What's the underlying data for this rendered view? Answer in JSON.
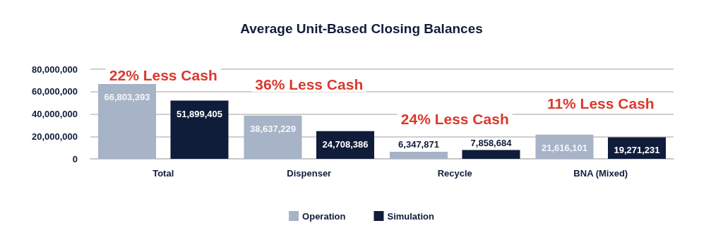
{
  "chart_data": {
    "type": "bar",
    "title": "Average Unit-Based Closing Balances",
    "categories": [
      "Total",
      "Dispenser",
      "Recycle",
      "BNA (Mixed)"
    ],
    "series": [
      {
        "name": "Operation",
        "color": "#a7b3c6",
        "values": [
          66803393,
          38637229,
          6347871,
          21616101
        ],
        "value_labels": [
          "66,803,393",
          "38,637,229",
          "6,347,871",
          "21,616,101"
        ]
      },
      {
        "name": "Simulation",
        "color": "#0f1c3a",
        "values": [
          51899405,
          24708386,
          7858684,
          19271231
        ],
        "value_labels": [
          "51,899,405",
          "24,708,386",
          "7,858,684",
          "19,271,231"
        ]
      }
    ],
    "ylim": [
      0,
      80000000
    ],
    "yticks": [
      {
        "value": 0,
        "label": "0"
      },
      {
        "value": 20000000,
        "label": "20,000,000"
      },
      {
        "value": 40000000,
        "label": "40,000,000"
      },
      {
        "value": 60000000,
        "label": "60,000,000"
      },
      {
        "value": 80000000,
        "label": "80,000,000"
      }
    ],
    "grid": "y",
    "legend": "bottom",
    "annotations": [
      "22% Less Cash",
      "36% Less Cash",
      "24% Less Cash",
      "11% Less Cash"
    ]
  }
}
